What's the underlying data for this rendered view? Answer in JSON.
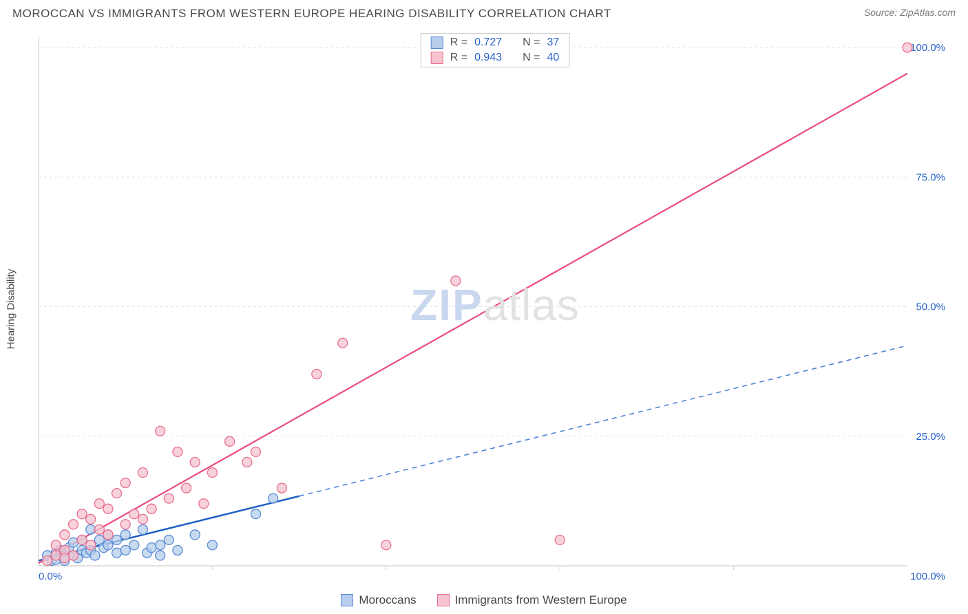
{
  "header": {
    "title": "MOROCCAN VS IMMIGRANTS FROM WESTERN EUROPE HEARING DISABILITY CORRELATION CHART",
    "source_label": "Source: ZipAtlas.com"
  },
  "axes": {
    "ylabel": "Hearing Disability",
    "xlim": [
      0,
      100
    ],
    "ylim": [
      0,
      102
    ],
    "xticks": [
      0,
      100
    ],
    "xtick_labels": [
      "0.0%",
      "100.0%"
    ],
    "yticks": [
      25,
      50,
      75,
      100
    ],
    "ytick_labels": [
      "25.0%",
      "50.0%",
      "75.0%",
      "100.0%"
    ],
    "x_inner_ticks": [
      20,
      40,
      60,
      80
    ],
    "background_color": "#ffffff",
    "grid_color": "#e4e4e4",
    "axis_color": "#cfcfcf",
    "tick_label_color": "#2a62c9",
    "tick_fontsize": 15
  },
  "watermark": {
    "zip": "ZIP",
    "atlas": "atlas"
  },
  "series": [
    {
      "key": "moroccans",
      "label": "Moroccans",
      "fill_color": "#b6cdeb",
      "stroke_color": "#5a8bd6",
      "line_color": "#1d5fc4",
      "line_dash_color": "#4f84d6",
      "marker_radius": 7,
      "R_label": "R =",
      "R": "0.727",
      "N_label": "N =",
      "N": "37",
      "fit": {
        "x1": 0,
        "y1": 1.0,
        "x2": 100,
        "y2": 42.5,
        "solid_until_x": 30
      },
      "points": [
        [
          1,
          2
        ],
        [
          1.5,
          1
        ],
        [
          2,
          2.5
        ],
        [
          2,
          1.2
        ],
        [
          2.5,
          3
        ],
        [
          3,
          2
        ],
        [
          3,
          1
        ],
        [
          3.5,
          3.5
        ],
        [
          4,
          2
        ],
        [
          4,
          4.5
        ],
        [
          4.5,
          1.5
        ],
        [
          5,
          3
        ],
        [
          5,
          5
        ],
        [
          5.5,
          2.5
        ],
        [
          6,
          7
        ],
        [
          6,
          3
        ],
        [
          6.5,
          2
        ],
        [
          7,
          5
        ],
        [
          7.5,
          3.5
        ],
        [
          8,
          4
        ],
        [
          8,
          6
        ],
        [
          9,
          2.5
        ],
        [
          9,
          5
        ],
        [
          10,
          3
        ],
        [
          10,
          6
        ],
        [
          11,
          4
        ],
        [
          12,
          7
        ],
        [
          12.5,
          2.5
        ],
        [
          13,
          3.5
        ],
        [
          14,
          4
        ],
        [
          14,
          2
        ],
        [
          15,
          5
        ],
        [
          16,
          3
        ],
        [
          18,
          6
        ],
        [
          20,
          4
        ],
        [
          25,
          10
        ],
        [
          27,
          13
        ]
      ]
    },
    {
      "key": "immigrants_we",
      "label": "Immigrants from Western Europe",
      "fill_color": "#f6c3cf",
      "stroke_color": "#e86f8f",
      "line_color": "#e94b7a",
      "marker_radius": 7,
      "R_label": "R =",
      "R": "0.943",
      "N_label": "N =",
      "N": "40",
      "fit": {
        "x1": 0,
        "y1": 0.5,
        "x2": 100,
        "y2": 95,
        "solid_until_x": 100
      },
      "points": [
        [
          1,
          1
        ],
        [
          2,
          2
        ],
        [
          2,
          4
        ],
        [
          3,
          3
        ],
        [
          3,
          6
        ],
        [
          4,
          2
        ],
        [
          4,
          8
        ],
        [
          5,
          5
        ],
        [
          5,
          10
        ],
        [
          6,
          4
        ],
        [
          6,
          9
        ],
        [
          7,
          7
        ],
        [
          7,
          12
        ],
        [
          8,
          6
        ],
        [
          8,
          11
        ],
        [
          9,
          14
        ],
        [
          10,
          8
        ],
        [
          10,
          16
        ],
        [
          11,
          10
        ],
        [
          12,
          18
        ],
        [
          12,
          9
        ],
        [
          13,
          11
        ],
        [
          14,
          26
        ],
        [
          15,
          13
        ],
        [
          16,
          22
        ],
        [
          17,
          15
        ],
        [
          18,
          20
        ],
        [
          19,
          12
        ],
        [
          20,
          18
        ],
        [
          22,
          24
        ],
        [
          24,
          20
        ],
        [
          25,
          22
        ],
        [
          28,
          15
        ],
        [
          32,
          37
        ],
        [
          35,
          43
        ],
        [
          40,
          4
        ],
        [
          48,
          55
        ],
        [
          60,
          5
        ],
        [
          100,
          100
        ],
        [
          3,
          1.5
        ]
      ]
    }
  ],
  "bottom_legend": {
    "items": [
      {
        "key": "moroccans",
        "label": "Moroccans"
      },
      {
        "key": "immigrants_we",
        "label": "Immigrants from Western Europe"
      }
    ]
  }
}
